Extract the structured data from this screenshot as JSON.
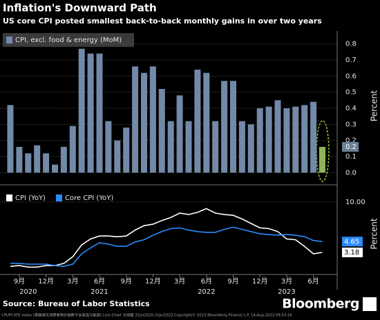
{
  "title": "Inflation's Downward Path",
  "subtitle": "US core CPI posted smallest back-to-back monthly gains in over two years",
  "source": "Source: Bureau of Labor Statistics",
  "brand": "Bloomberg",
  "footnote": "CPUPCXFE Index (美国城市消费者物价指数不含食品与能源) Line Chart 日线图 31Jul2020-31Jul2023 Copyright© 2023 Bloomberg Finance L.P. 14-Aug-2023 09:53:16",
  "chart_data": [
    {
      "type": "bar",
      "y_label": "Percent",
      "x": [
        "2020-08",
        "2020-09",
        "2020-10",
        "2020-11",
        "2020-12",
        "2021-01",
        "2021-02",
        "2021-03",
        "2021-04",
        "2021-05",
        "2021-06",
        "2021-07",
        "2021-08",
        "2021-09",
        "2021-10",
        "2021-11",
        "2021-12",
        "2022-01",
        "2022-02",
        "2022-03",
        "2022-04",
        "2022-05",
        "2022-06",
        "2022-07",
        "2022-08",
        "2022-09",
        "2022-10",
        "2022-11",
        "2022-12",
        "2023-01",
        "2023-02",
        "2023-03",
        "2023-04",
        "2023-05",
        "2023-06",
        "2023-07"
      ],
      "series": [
        {
          "name": "CPI, excl. food & energy (MoM)",
          "color": "#7289a8",
          "highlight_color": "#8fb35a",
          "values": [
            0.42,
            0.16,
            0.12,
            0.17,
            0.12,
            0.05,
            0.16,
            0.29,
            0.77,
            0.74,
            0.74,
            0.32,
            0.2,
            0.28,
            0.66,
            0.62,
            0.66,
            0.52,
            0.32,
            0.48,
            0.32,
            0.64,
            0.62,
            0.32,
            0.57,
            0.57,
            0.32,
            0.3,
            0.4,
            0.41,
            0.45,
            0.4,
            0.41,
            0.42,
            0.44,
            0.16
          ],
          "value_labels": [
            null,
            null,
            null,
            null,
            null,
            null,
            null,
            null,
            null,
            null,
            null,
            null,
            null,
            null,
            null,
            null,
            null,
            null,
            null,
            null,
            null,
            null,
            null,
            null,
            null,
            null,
            null,
            null,
            null,
            null,
            null,
            null,
            null,
            null,
            null,
            "0.2"
          ]
        }
      ],
      "ylim": [
        -0.05,
        0.88
      ],
      "yticks": [
        {
          "value": 0,
          "label": "0.0"
        },
        0.1,
        0.2,
        0.3,
        0.4,
        0.5,
        0.6,
        0.7,
        0.8
      ],
      "grid": true
    },
    {
      "type": "line",
      "y_label": "Percent",
      "x": [
        "2020-08",
        "2020-09",
        "2020-10",
        "2020-11",
        "2020-12",
        "2021-01",
        "2021-02",
        "2021-03",
        "2021-04",
        "2021-05",
        "2021-06",
        "2021-07",
        "2021-08",
        "2021-09",
        "2021-10",
        "2021-11",
        "2021-12",
        "2022-01",
        "2022-02",
        "2022-03",
        "2022-04",
        "2022-05",
        "2022-06",
        "2022-07",
        "2022-08",
        "2022-09",
        "2022-10",
        "2022-11",
        "2022-12",
        "2023-01",
        "2023-02",
        "2023-03",
        "2023-04",
        "2023-05",
        "2023-06",
        "2023-07"
      ],
      "series": [
        {
          "name": "CPI (YoY)",
          "color": "#ffffff",
          "label_text": "#000000",
          "values": [
            1.3,
            1.4,
            1.2,
            1.2,
            1.4,
            1.4,
            1.7,
            2.6,
            4.2,
            5.0,
            5.4,
            5.4,
            5.3,
            5.4,
            6.2,
            6.8,
            7.0,
            7.5,
            7.9,
            8.5,
            8.3,
            8.6,
            9.1,
            8.5,
            8.3,
            8.2,
            7.7,
            7.1,
            6.5,
            6.4,
            6.0,
            5.0,
            4.9,
            4.0,
            3.0,
            3.18
          ]
        },
        {
          "name": "Core CPI (YoY)",
          "color": "#2a8cff",
          "label_text": "#ffffff",
          "values": [
            1.7,
            1.7,
            1.6,
            1.6,
            1.6,
            1.4,
            1.3,
            1.6,
            3.0,
            3.8,
            4.5,
            4.3,
            4.0,
            4.0,
            4.6,
            4.9,
            5.5,
            6.0,
            6.4,
            6.5,
            6.2,
            6.0,
            5.9,
            5.9,
            6.3,
            6.6,
            6.3,
            6.0,
            5.7,
            5.6,
            5.5,
            5.6,
            5.5,
            5.3,
            4.8,
            4.65
          ]
        }
      ],
      "ylim": [
        0.2,
        11.2
      ],
      "yticks": [
        {
          "value": 10,
          "label": "10.00"
        }
      ],
      "grid": true,
      "xticks": [
        {
          "value": "2020-09",
          "label": "9月"
        },
        {
          "value": "2020-12",
          "label": "12月"
        },
        {
          "value": "2021-03",
          "label": "3月"
        },
        {
          "value": "2021-06",
          "label": "6月"
        },
        {
          "value": "2021-09",
          "label": "9月"
        },
        {
          "value": "2021-12",
          "label": "12月"
        },
        {
          "value": "2022-03",
          "label": "3月"
        },
        {
          "value": "2022-06",
          "label": "6月"
        },
        {
          "value": "2022-09",
          "label": "9月"
        },
        {
          "value": "2022-12",
          "label": "12月"
        },
        {
          "value": "2023-03",
          "label": "3月"
        },
        {
          "value": "2023-06",
          "label": "6月"
        }
      ],
      "year_ticks": [
        {
          "value": "2020-10",
          "label": "2020"
        },
        {
          "value": "2021-06",
          "label": "2021"
        },
        {
          "value": "2022-06",
          "label": "2022"
        },
        {
          "value": "2023-03",
          "label": "2023"
        }
      ]
    }
  ]
}
